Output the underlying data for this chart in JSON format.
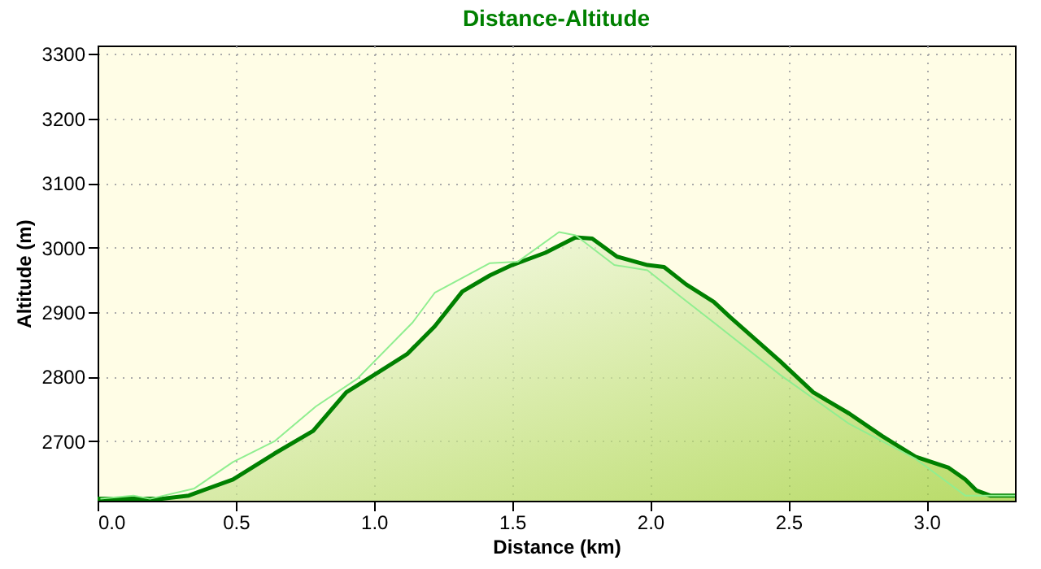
{
  "chart_data": {
    "type": "area",
    "title": "Distance-Altitude",
    "xlabel": "Distance (km)",
    "ylabel": "Altitude (m)",
    "xlim": [
      0,
      3.32
    ],
    "ylim": [
      2608,
      3313
    ],
    "xticks": [
      {
        "value": 0,
        "label": "0.0"
      },
      0.5,
      {
        "value": 1,
        "label": "1.0"
      },
      1.5,
      {
        "value": 2,
        "label": "2.0"
      },
      2.5,
      {
        "value": 3,
        "label": "3.0"
      }
    ],
    "yticks": [
      2700,
      2800,
      2900,
      3000,
      3100,
      3200,
      3300
    ],
    "grid": true,
    "line_style": "solid",
    "marker": "none",
    "series": [
      {
        "color": "#008000",
        "x": [
          0,
          0.23,
          0.33,
          0.49,
          0.64,
          0.78,
          0.9,
          1.02,
          1.12,
          1.22,
          1.32,
          1.42,
          1.5,
          1.62,
          1.73,
          1.79,
          1.88,
          1.99,
          2.05,
          2.13,
          2.23,
          2.29,
          2.47,
          2.59,
          2.72,
          2.84,
          2.96,
          3.08,
          3.14,
          3.18,
          3.23,
          3.32
        ],
        "values": [
          2611,
          2611,
          2616,
          2641,
          2681,
          2716,
          2776,
          2808,
          2835,
          2878,
          2932,
          2957,
          2973,
          2992,
          3016,
          3014,
          2986,
          2973,
          2970,
          2943,
          2916,
          2892,
          2824,
          2776,
          2743,
          2708,
          2676,
          2659,
          2641,
          2624,
          2616,
          2616
        ]
      },
      {
        "type": "line",
        "color": "#90ee90",
        "x": [
          0.01,
          0.13,
          0.19,
          0.35,
          0.49,
          0.64,
          0.79,
          0.94,
          1.14,
          1.22,
          1.42,
          1.52,
          1.67,
          1.73,
          1.87,
          1.99,
          2.11,
          2.23,
          2.47,
          2.72,
          2.96,
          3.08,
          3.14,
          3.32
        ],
        "values": [
          2611,
          2616,
          2611,
          2627,
          2668,
          2700,
          2754,
          2797,
          2884,
          2930,
          2976,
          2978,
          3024,
          3019,
          2973,
          2965,
          2924,
          2884,
          2803,
          2727,
          2673,
          2635,
          2616,
          2616
        ]
      }
    ]
  }
}
